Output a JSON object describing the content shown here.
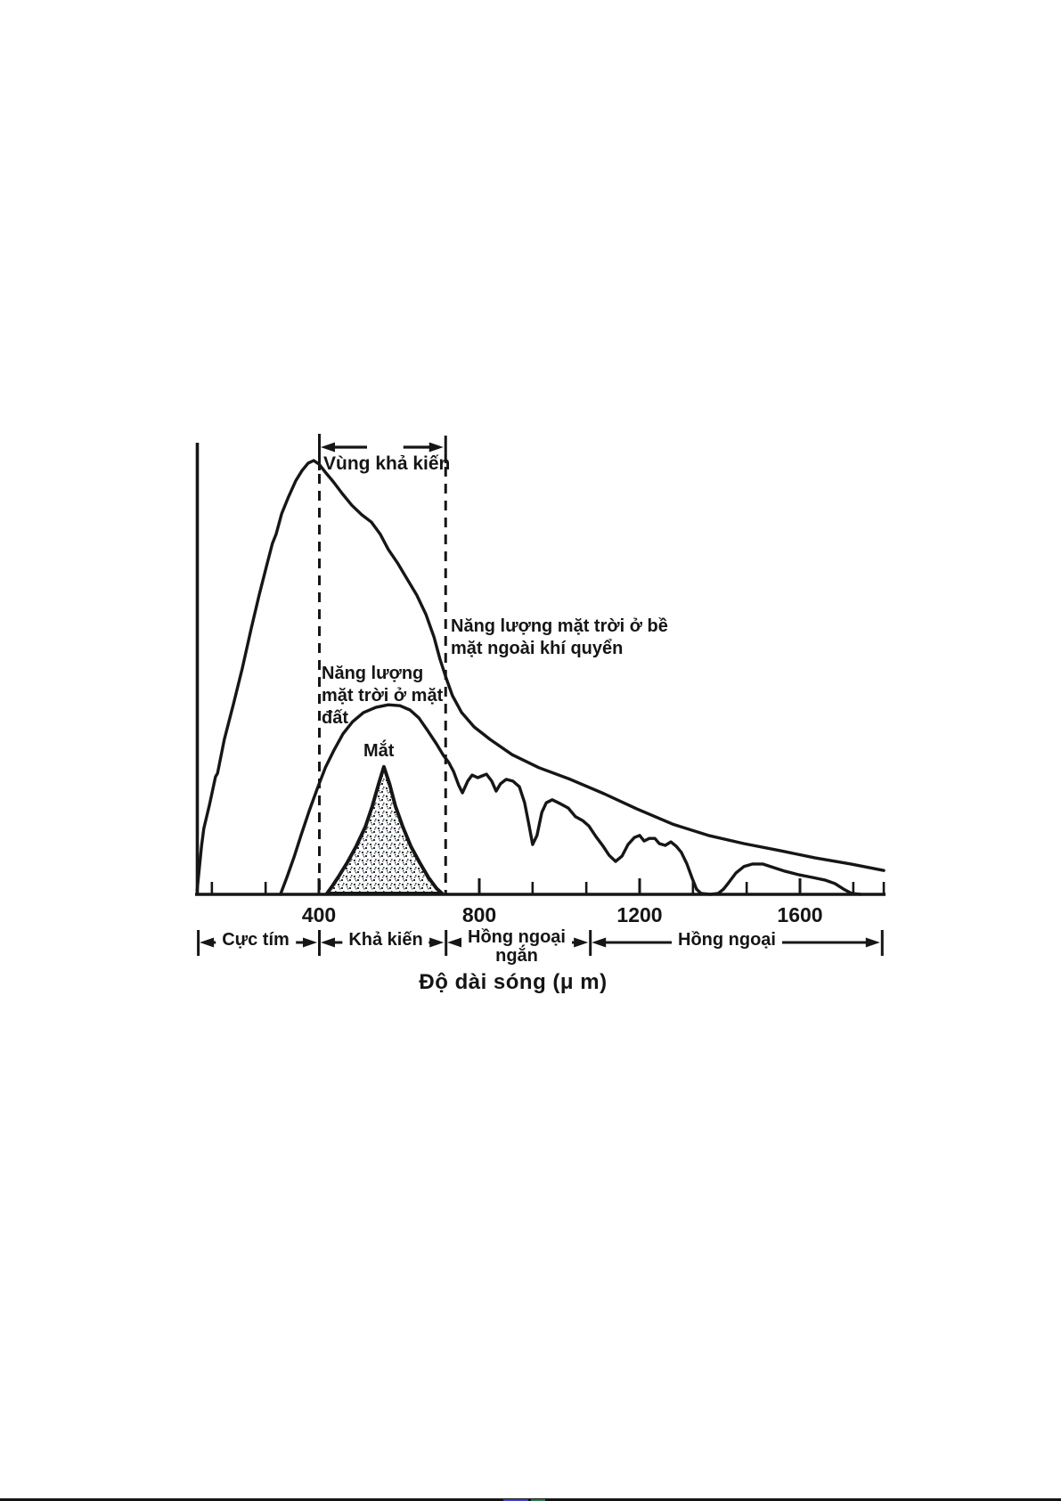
{
  "figure": {
    "background": "#ffffff",
    "ink_color": "#161616",
    "artifact_colors": {
      "blue": "#3c43cf",
      "green": "#2f7d4a"
    }
  },
  "chart_data": {
    "type": "line",
    "xlabel": "Độ dài sóng (μ m)",
    "ylabel": "",
    "x_major_ticks": [
      400,
      800,
      1200,
      1600
    ],
    "x_minor_ticks": [
      133,
      267,
      533,
      667,
      933,
      1067,
      1333,
      1467,
      1733,
      1809
    ],
    "xlim": [
      96,
      1810
    ],
    "ylim": [
      0,
      1
    ],
    "grid": false,
    "dashed_guides_x": [
      400,
      715
    ],
    "visible_region_span": [
      400,
      715
    ],
    "annotations": {
      "visible_region": "Vùng khả kiến",
      "toa_line1": "Năng lượng mặt trời ở bề",
      "toa_line2": "mặt ngoài khí quyển",
      "ground_line1": "Năng lượng",
      "ground_line2": "mặt trời ở mặt",
      "ground_line3": "đất",
      "eye": "Mắt"
    },
    "bands": [
      {
        "label": "Cực tím",
        "from": 98,
        "to": 400
      },
      {
        "label": "Khả kiến",
        "from": 400,
        "to": 716
      },
      {
        "label": "Hồng ngoại",
        "label2": "ngắn",
        "from": 716,
        "to": 1076
      },
      {
        "label": "Hồng ngoại",
        "from": 1076,
        "to": 1804
      }
    ],
    "series": [
      {
        "name": "Năng lượng mặt trời ở bề mặt ngoài khí quyển",
        "points": [
          [
            96,
            0.008
          ],
          [
            107,
            0.111
          ],
          [
            113,
            0.152
          ],
          [
            127,
            0.207
          ],
          [
            142,
            0.271
          ],
          [
            147,
            0.279
          ],
          [
            164,
            0.357
          ],
          [
            187,
            0.439
          ],
          [
            209,
            0.522
          ],
          [
            231,
            0.612
          ],
          [
            251,
            0.69
          ],
          [
            269,
            0.756
          ],
          [
            284,
            0.809
          ],
          [
            293,
            0.83
          ],
          [
            307,
            0.877
          ],
          [
            324,
            0.916
          ],
          [
            342,
            0.953
          ],
          [
            358,
            0.977
          ],
          [
            373,
            0.994
          ],
          [
            387,
            1.0
          ],
          [
            400,
            0.992
          ],
          [
            416,
            0.973
          ],
          [
            436,
            0.951
          ],
          [
            458,
            0.924
          ],
          [
            482,
            0.897
          ],
          [
            507,
            0.875
          ],
          [
            531,
            0.858
          ],
          [
            553,
            0.83
          ],
          [
            573,
            0.795
          ],
          [
            596,
            0.764
          ],
          [
            620,
            0.727
          ],
          [
            644,
            0.69
          ],
          [
            667,
            0.645
          ],
          [
            687,
            0.593
          ],
          [
            702,
            0.542
          ],
          [
            718,
            0.497
          ],
          [
            733,
            0.458
          ],
          [
            756,
            0.419
          ],
          [
            787,
            0.386
          ],
          [
            827,
            0.357
          ],
          [
            882,
            0.322
          ],
          [
            949,
            0.292
          ],
          [
            1027,
            0.265
          ],
          [
            1111,
            0.232
          ],
          [
            1193,
            0.197
          ],
          [
            1282,
            0.162
          ],
          [
            1371,
            0.136
          ],
          [
            1460,
            0.117
          ],
          [
            1549,
            0.101
          ],
          [
            1638,
            0.084
          ],
          [
            1727,
            0.07
          ],
          [
            1809,
            0.055
          ]
        ]
      },
      {
        "name": "Năng lượng mặt trời ở mặt đất",
        "points": [
          [
            304,
            0.0
          ],
          [
            320,
            0.039
          ],
          [
            338,
            0.086
          ],
          [
            356,
            0.138
          ],
          [
            376,
            0.193
          ],
          [
            396,
            0.244
          ],
          [
            416,
            0.292
          ],
          [
            438,
            0.333
          ],
          [
            460,
            0.37
          ],
          [
            484,
            0.398
          ],
          [
            511,
            0.419
          ],
          [
            542,
            0.431
          ],
          [
            573,
            0.437
          ],
          [
            602,
            0.435
          ],
          [
            627,
            0.425
          ],
          [
            649,
            0.407
          ],
          [
            671,
            0.378
          ],
          [
            693,
            0.347
          ],
          [
            711,
            0.32
          ],
          [
            724,
            0.304
          ],
          [
            736,
            0.283
          ],
          [
            749,
            0.251
          ],
          [
            758,
            0.234
          ],
          [
            771,
            0.261
          ],
          [
            782,
            0.275
          ],
          [
            796,
            0.269
          ],
          [
            807,
            0.273
          ],
          [
            818,
            0.277
          ],
          [
            831,
            0.261
          ],
          [
            842,
            0.238
          ],
          [
            853,
            0.255
          ],
          [
            867,
            0.265
          ],
          [
            884,
            0.261
          ],
          [
            900,
            0.248
          ],
          [
            913,
            0.211
          ],
          [
            924,
            0.16
          ],
          [
            933,
            0.115
          ],
          [
            944,
            0.136
          ],
          [
            956,
            0.189
          ],
          [
            967,
            0.211
          ],
          [
            982,
            0.218
          ],
          [
            1002,
            0.209
          ],
          [
            1022,
            0.199
          ],
          [
            1040,
            0.179
          ],
          [
            1058,
            0.17
          ],
          [
            1073,
            0.158
          ],
          [
            1091,
            0.133
          ],
          [
            1109,
            0.111
          ],
          [
            1124,
            0.09
          ],
          [
            1140,
            0.076
          ],
          [
            1156,
            0.088
          ],
          [
            1171,
            0.115
          ],
          [
            1187,
            0.131
          ],
          [
            1200,
            0.136
          ],
          [
            1211,
            0.123
          ],
          [
            1224,
            0.129
          ],
          [
            1238,
            0.129
          ],
          [
            1249,
            0.117
          ],
          [
            1264,
            0.113
          ],
          [
            1278,
            0.121
          ],
          [
            1291,
            0.111
          ],
          [
            1304,
            0.097
          ],
          [
            1318,
            0.07
          ],
          [
            1331,
            0.037
          ],
          [
            1342,
            0.012
          ],
          [
            1353,
            0.002
          ],
          [
            1376,
            0.0
          ],
          [
            1396,
            0.002
          ],
          [
            1409,
            0.012
          ],
          [
            1422,
            0.027
          ],
          [
            1440,
            0.049
          ],
          [
            1460,
            0.064
          ],
          [
            1482,
            0.07
          ],
          [
            1507,
            0.07
          ],
          [
            1533,
            0.062
          ],
          [
            1564,
            0.053
          ],
          [
            1598,
            0.045
          ],
          [
            1631,
            0.039
          ],
          [
            1662,
            0.033
          ],
          [
            1687,
            0.025
          ],
          [
            1709,
            0.012
          ],
          [
            1729,
            0.002
          ],
          [
            1751,
            0.0
          ]
        ]
      },
      {
        "name": "Mắt",
        "filled": true,
        "points": [
          [
            420,
            0.002
          ],
          [
            431,
            0.016
          ],
          [
            449,
            0.041
          ],
          [
            471,
            0.074
          ],
          [
            493,
            0.111
          ],
          [
            516,
            0.156
          ],
          [
            533,
            0.203
          ],
          [
            549,
            0.255
          ],
          [
            562,
            0.294
          ],
          [
            576,
            0.255
          ],
          [
            591,
            0.203
          ],
          [
            609,
            0.156
          ],
          [
            629,
            0.111
          ],
          [
            651,
            0.074
          ],
          [
            673,
            0.039
          ],
          [
            693,
            0.014
          ],
          [
            707,
            0.002
          ]
        ]
      }
    ]
  }
}
